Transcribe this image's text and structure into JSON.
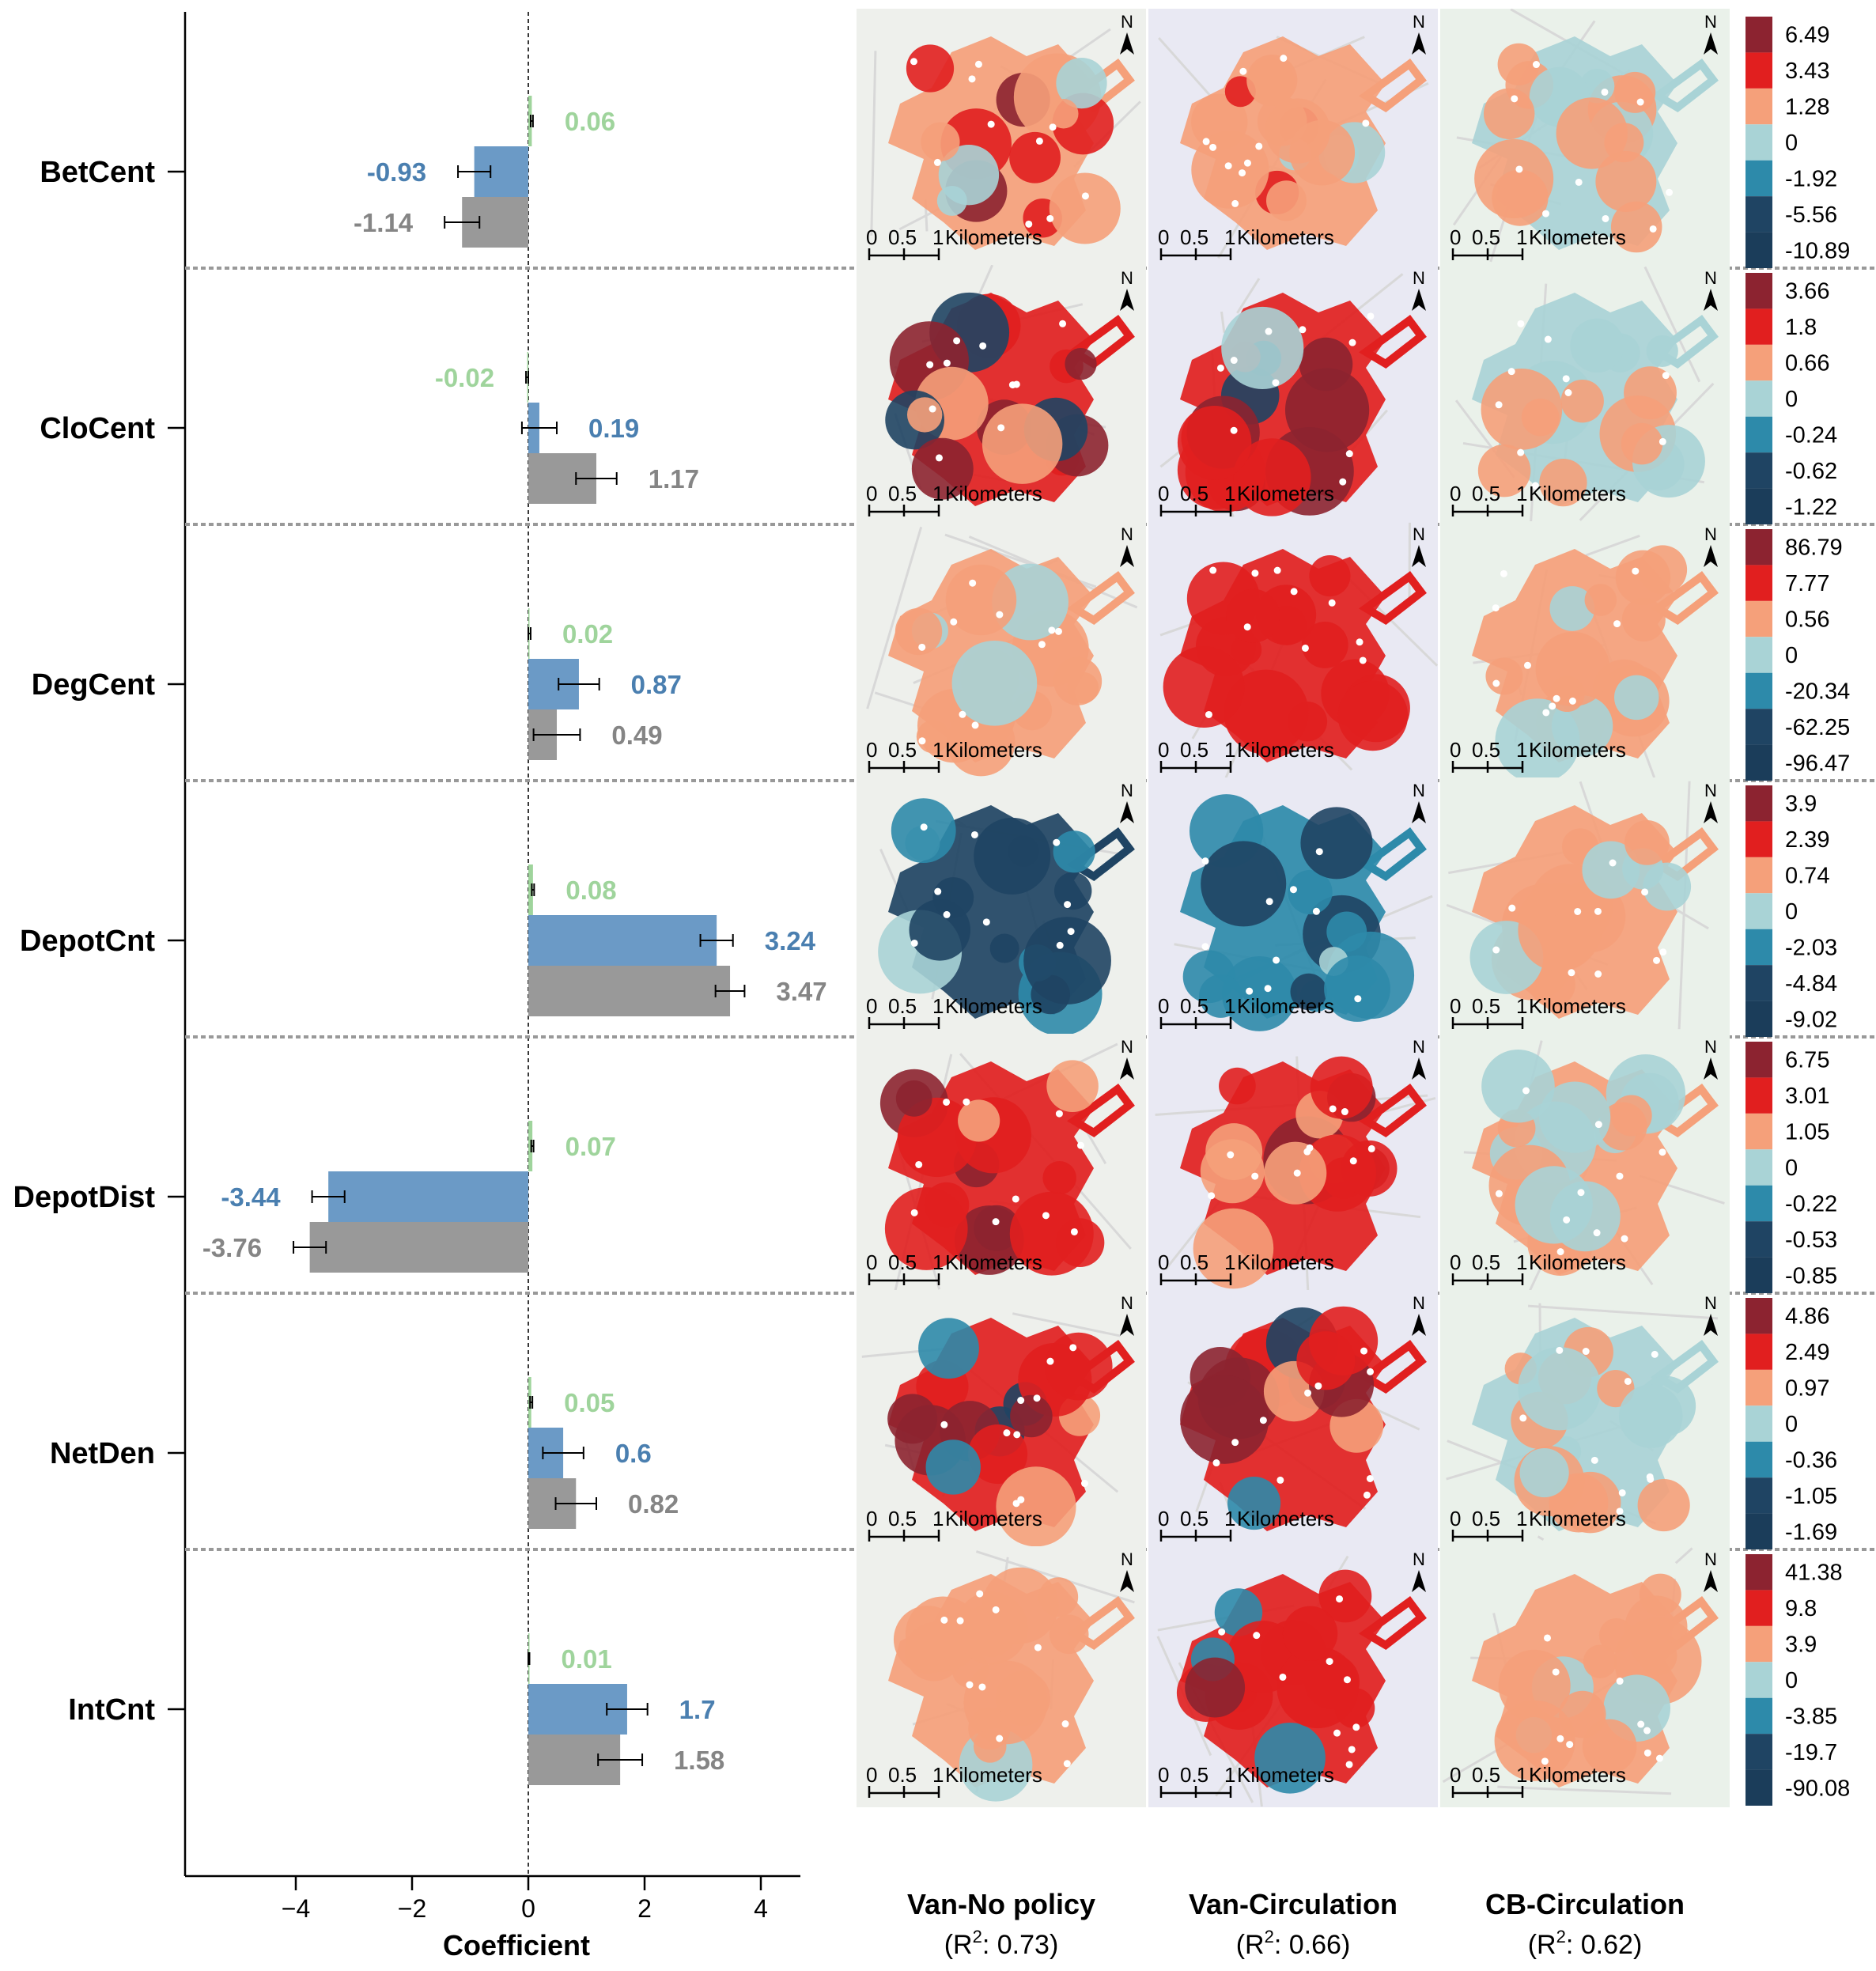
{
  "chart_data": {
    "type": "bar",
    "orientation": "horizontal",
    "xlabel": "Coefficient",
    "xlim": [
      -5.9,
      4.1
    ],
    "xticks": [
      -4,
      -2,
      0,
      2,
      4
    ],
    "xtick_labels": [
      "−4",
      "−2",
      "0",
      "2",
      "4"
    ],
    "categories": [
      "BetCent",
      "CloCent",
      "DegCent",
      "DepotCnt",
      "DepotDist",
      "NetDen",
      "IntCnt"
    ],
    "series": [
      {
        "name": "CB-Circulation",
        "color": "#9fd49c",
        "values": [
          0.06,
          -0.02,
          0.02,
          0.08,
          0.07,
          0.05,
          0.01
        ],
        "errors": [
          0.02,
          0.02,
          0.02,
          0.02,
          0.02,
          0.02,
          0.01
        ],
        "value_labels": [
          "0.06",
          "-0.02",
          "0.02",
          "0.08",
          "0.07",
          "0.05",
          "0.01"
        ]
      },
      {
        "name": "Van-Circulation",
        "color": "#6b9ac6",
        "values": [
          -0.93,
          0.19,
          0.87,
          3.24,
          -3.44,
          0.6,
          1.7
        ],
        "errors": [
          0.28,
          0.3,
          0.35,
          0.28,
          0.28,
          0.35,
          0.35
        ],
        "value_labels": [
          "-0.93",
          "0.19",
          "0.87",
          "3.24",
          "-3.44",
          "0.6",
          "1.7"
        ]
      },
      {
        "name": "Van-No policy",
        "color": "#999999",
        "values": [
          -1.14,
          1.17,
          0.49,
          3.47,
          -3.76,
          0.82,
          1.58
        ],
        "errors": [
          0.3,
          0.35,
          0.4,
          0.25,
          0.28,
          0.35,
          0.38
        ],
        "value_labels": [
          "-1.14",
          "1.17",
          "0.49",
          "3.47",
          "-3.76",
          "0.82",
          "1.58"
        ]
      }
    ],
    "label_colors": {
      "CB-Circulation": "#9fd49c",
      "Van-Circulation": "#4a7fb0",
      "Van-No policy": "#858585"
    },
    "maps": {
      "columns": [
        {
          "title": "Van-No policy",
          "r2_label": "R",
          "r2_text": ": 0.73)"
        },
        {
          "title": "Van-Circulation",
          "r2_label": "R",
          "r2_text": ": 0.66)"
        },
        {
          "title": "CB-Circulation",
          "r2_label": "R",
          "r2_text": ": 0.62)"
        }
      ],
      "r2_open": "(",
      "r2_sup": "2",
      "north_label": "N",
      "scale_ticks": [
        "0",
        "0.5",
        "1"
      ],
      "scale_unit": "Kilometers",
      "class_colors": [
        "#8c2330",
        "#e11f1f",
        "#f5a07a",
        "#a9d3d6",
        "#2d8aaa",
        "#1f4463"
      ],
      "colorbars": [
        [
          "6.49",
          "3.43",
          "1.28",
          "0",
          "-1.92",
          "-5.56",
          "-10.89"
        ],
        [
          "3.66",
          "1.8",
          "0.66",
          "0",
          "-0.24",
          "-0.62",
          "-1.22"
        ],
        [
          "86.79",
          "7.77",
          "0.56",
          "0",
          "-20.34",
          "-62.25",
          "-96.47"
        ],
        [
          "3.9",
          "2.39",
          "0.74",
          "0",
          "-2.03",
          "-4.84",
          "-9.02"
        ],
        [
          "6.75",
          "3.01",
          "1.05",
          "0",
          "-0.22",
          "-0.53",
          "-0.85"
        ],
        [
          "4.86",
          "2.49",
          "0.97",
          "0",
          "-0.36",
          "-1.05",
          "-1.69"
        ],
        [
          "41.38",
          "9.8",
          "3.9",
          "0",
          "-3.85",
          "-19.7",
          "-90.08"
        ]
      ]
    }
  }
}
